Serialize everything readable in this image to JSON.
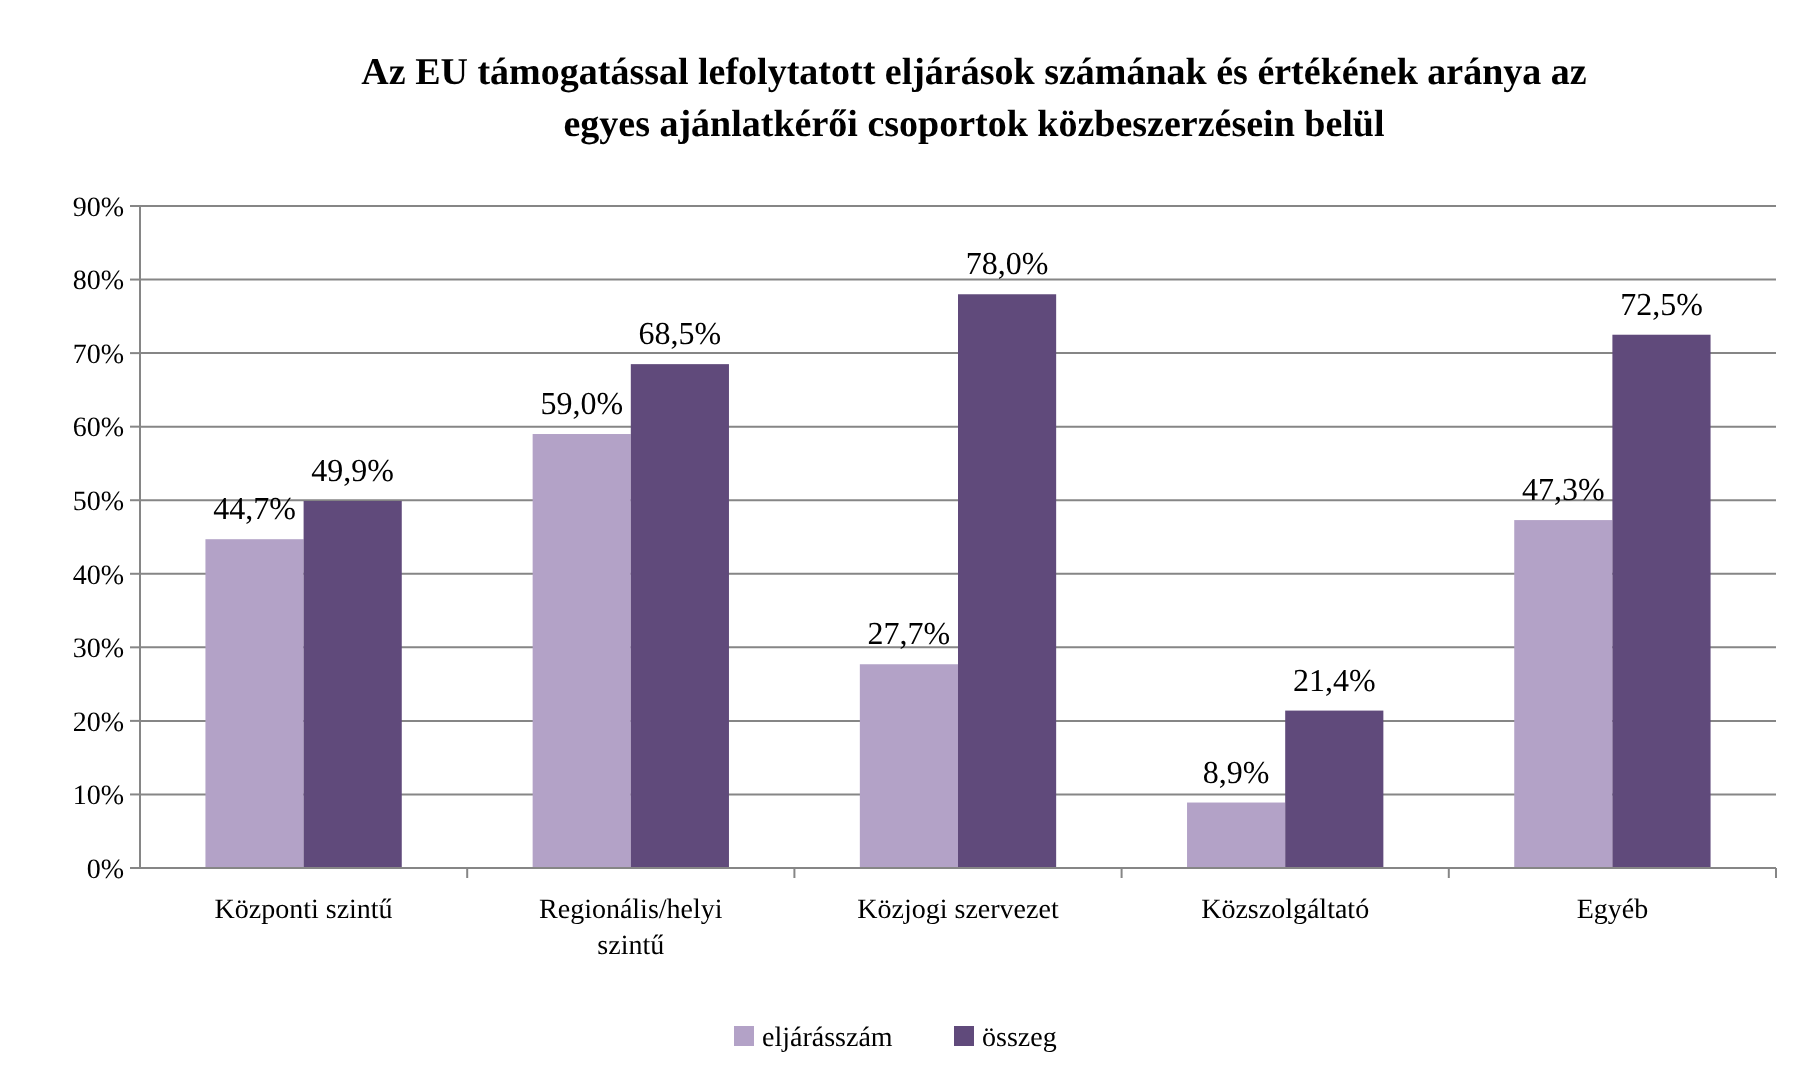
{
  "chart_data": {
    "type": "bar",
    "title": "Az EU támogatással lefolytatott eljárások számának és értékének aránya az egyes ajánlatkérői csoportok közbeszerzésein belül",
    "categories": [
      "Központi szintű",
      "Regionális/helyi szintű",
      "Közjogi szervezet",
      "Közszolgáltató",
      "Egyéb"
    ],
    "series": [
      {
        "name": "eljárásszám",
        "color": "#b3a2c7",
        "values": [
          44.7,
          59.0,
          27.7,
          8.9,
          47.3
        ],
        "value_labels": [
          "44,7%",
          "59,0%",
          "27,7%",
          "8,9%",
          "47,3%"
        ]
      },
      {
        "name": "összeg",
        "color": "#604a7b",
        "values": [
          49.9,
          68.5,
          78.0,
          21.4,
          72.5
        ],
        "value_labels": [
          "49,9%",
          "68,5%",
          "78,0%",
          "21,4%",
          "72,5%"
        ]
      }
    ],
    "ylim": [
      0,
      90
    ],
    "yticks": [
      {
        "value": 0,
        "label": "0%"
      },
      {
        "value": 10,
        "label": "10%"
      },
      {
        "value": 20,
        "label": "20%"
      },
      {
        "value": 30,
        "label": "30%"
      },
      {
        "value": 40,
        "label": "40%"
      },
      {
        "value": 50,
        "label": "50%"
      },
      {
        "value": 60,
        "label": "60%"
      },
      {
        "value": 70,
        "label": "70%"
      },
      {
        "value": 80,
        "label": "80%"
      },
      {
        "value": 90,
        "label": "90%"
      }
    ],
    "grid": "y",
    "legend": "bottom"
  }
}
